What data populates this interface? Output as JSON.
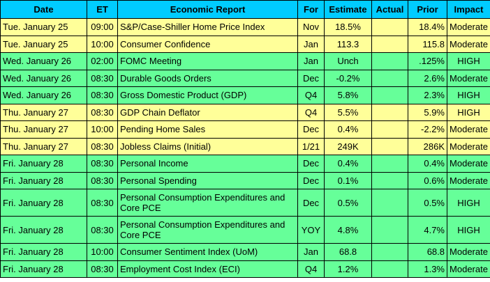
{
  "colors": {
    "header_bg": "#00ccff",
    "row_yellow": "#ffff99",
    "row_green": "#66ff99",
    "border": "#000000"
  },
  "table": {
    "headers": {
      "date": "Date",
      "et": "ET",
      "report": "Economic Report",
      "for": "For",
      "estimate": "Estimate",
      "actual": "Actual",
      "prior": "Prior",
      "impact": "Impact"
    },
    "rows": [
      {
        "date": "Tue. January 25",
        "et": "09:00",
        "report": "S&P/Case-Shiller Home Price Index",
        "for": "Nov",
        "estimate": "18.5%",
        "actual": "",
        "prior": "18.4%",
        "impact": "Moderate",
        "color": "yellow"
      },
      {
        "date": "Tue. January 25",
        "et": "10:00",
        "report": "Consumer Confidence",
        "for": "Jan",
        "estimate": "113.3",
        "actual": "",
        "prior": "115.8",
        "impact": "Moderate",
        "color": "yellow"
      },
      {
        "date": "Wed. January 26",
        "et": "02:00",
        "report": "FOMC Meeting",
        "for": "Jan",
        "estimate": "Unch",
        "actual": "",
        "prior": ".125%",
        "impact": "HIGH",
        "color": "green"
      },
      {
        "date": "Wed. January 26",
        "et": "08:30",
        "report": "Durable Goods Orders",
        "for": "Dec",
        "estimate": "-0.2%",
        "actual": "",
        "prior": "2.6%",
        "impact": "Moderate",
        "color": "green"
      },
      {
        "date": "Wed. January 26",
        "et": "08:30",
        "report": "Gross Domestic Product (GDP)",
        "for": "Q4",
        "estimate": "5.8%",
        "actual": "",
        "prior": "2.3%",
        "impact": "HIGH",
        "color": "green"
      },
      {
        "date": "Thu. January 27",
        "et": "08:30",
        "report": "GDP Chain Deflator",
        "for": "Q4",
        "estimate": "5.5%",
        "actual": "",
        "prior": "5.9%",
        "impact": "HIGH",
        "color": "yellow"
      },
      {
        "date": "Thu. January 27",
        "et": "10:00",
        "report": "Pending Home Sales",
        "for": "Dec",
        "estimate": "0.4%",
        "actual": "",
        "prior": "-2.2%",
        "impact": "Moderate",
        "color": "yellow"
      },
      {
        "date": "Thu. January 27",
        "et": "08:30",
        "report": "Jobless Claims (Initial)",
        "for": "1/21",
        "estimate": "249K",
        "actual": "",
        "prior": "286K",
        "impact": "Moderate",
        "color": "yellow"
      },
      {
        "date": "Fri. January 28",
        "et": "08:30",
        "report": "Personal Income",
        "for": "Dec",
        "estimate": "0.4%",
        "actual": "",
        "prior": "0.4%",
        "impact": "Moderate",
        "color": "green"
      },
      {
        "date": "Fri. January 28",
        "et": "08:30",
        "report": "Personal Spending",
        "for": "Dec",
        "estimate": "0.1%",
        "actual": "",
        "prior": "0.6%",
        "impact": "Moderate",
        "color": "green"
      },
      {
        "date": "Fri. January 28",
        "et": "08:30",
        "report": "Personal Consumption Expenditures and Core PCE",
        "for": "Dec",
        "estimate": "0.5%",
        "actual": "",
        "prior": "0.5%",
        "impact": "HIGH",
        "color": "green",
        "tall": true
      },
      {
        "date": "Fri. January 28",
        "et": "08:30",
        "report": "Personal Consumption Expenditures and Core PCE",
        "for": "YOY",
        "estimate": "4.8%",
        "actual": "",
        "prior": "4.7%",
        "impact": "HIGH",
        "color": "green",
        "tall": true
      },
      {
        "date": "Fri. January 28",
        "et": "10:00",
        "report": "Consumer Sentiment Index (UoM)",
        "for": "Jan",
        "estimate": "68.8",
        "actual": "",
        "prior": "68.8",
        "impact": "Moderate",
        "color": "green"
      },
      {
        "date": "Fri. January 28",
        "et": "08:30",
        "report": "Employment Cost Index (ECI)",
        "for": "Q4",
        "estimate": "1.2%",
        "actual": "",
        "prior": "1.3%",
        "impact": "Moderate",
        "color": "green"
      }
    ]
  }
}
